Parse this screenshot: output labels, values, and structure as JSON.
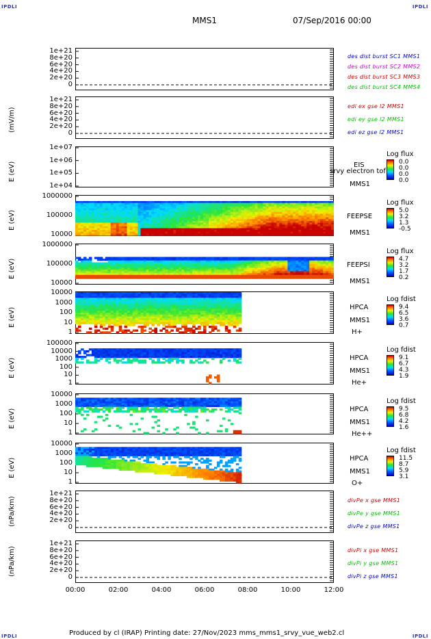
{
  "header": {
    "corner_left": "IPDLI",
    "corner_right": "IPDLI",
    "spacecraft": "MMS1",
    "date": "07/Sep/2016 00:00"
  },
  "footer": {
    "corner_left": "IPDLI",
    "corner_right": "IPDLI",
    "text": "Produced by cl (IRAP)   Printing date: 27/Nov/2023   mms_mms1_srvy_vue_web2.cl"
  },
  "colors": {
    "c1": "#0000cc",
    "c2": "#cc00cc",
    "c3": "#cc0000",
    "c4": "#00bb00",
    "red": "#cc0000",
    "green": "#00bb00",
    "blue": "#0000cc"
  },
  "chart_data": {
    "type": "multi-panel time series",
    "x_tick_labels": [
      "00:00",
      "02:00",
      "04:00",
      "06:00",
      "08:00",
      "10:00",
      "12:00"
    ],
    "xlim_hours": [
      0,
      12
    ],
    "panels": [
      {
        "id": "p1",
        "type": "line",
        "ytick_labels": [
          "1e+21",
          "8e+20",
          "6e+20",
          "4e+20",
          "2e+20",
          "0"
        ],
        "ylabel": "",
        "legend": [
          "des dist burst SC1 MMS1",
          "des dist burst SC2 MMS2",
          "des dist burst SC3 MMS3",
          "des dist burst SC4 MMS4"
        ]
      },
      {
        "id": "p2",
        "type": "line",
        "ytick_labels": [
          "1e+21",
          "8e+20",
          "6e+20",
          "4e+20",
          "2e+20",
          "0"
        ],
        "ylabel": "(mV/m)",
        "legend": [
          "edi ex gse l2 MMS1",
          "edi ey gse l2 MMS1",
          "edi ez gse l2 MMS1"
        ]
      },
      {
        "id": "p3",
        "type": "heatmap",
        "ytick_labels": [
          "1e+07",
          "1e+06",
          "1e+05",
          "1e+04"
        ],
        "ylabel": "E (eV)",
        "right_labels": [
          "EIS",
          "srvy electron tof",
          "MMS1"
        ],
        "colorbar_title": "Log flux",
        "colorbar_ticks": [
          "0.0",
          "0.0",
          "0.0",
          "0.0"
        ]
      },
      {
        "id": "p4",
        "type": "heatmap",
        "ytick_labels": [
          "1000000",
          "100000",
          "10000"
        ],
        "ylabel": "E (eV)",
        "right_labels": [
          "FEEPSE",
          "MMS1"
        ],
        "colorbar_title": "Log flux",
        "colorbar_ticks": [
          "5.0",
          "3.2",
          "1.3",
          "-0.5"
        ]
      },
      {
        "id": "p5",
        "type": "heatmap",
        "ytick_labels": [
          "1000000",
          "100000",
          "10000"
        ],
        "ylabel": "E (eV)",
        "right_labels": [
          "FEEPSI",
          "MMS1"
        ],
        "colorbar_title": "Log flux",
        "colorbar_ticks": [
          "4.7",
          "3.2",
          "1.7",
          "0.2"
        ]
      },
      {
        "id": "p6",
        "type": "heatmap",
        "ytick_labels": [
          "10000",
          "1000",
          "100",
          "10",
          "1"
        ],
        "ylabel": "E (eV)",
        "right_labels": [
          "HPCA",
          "MMS1",
          "H+"
        ],
        "colorbar_title": "Log fdist",
        "colorbar_ticks": [
          "9.4",
          "6.5",
          "3.6",
          "0.7"
        ]
      },
      {
        "id": "p7",
        "type": "heatmap",
        "ytick_labels": [
          "100000",
          "10000",
          "1000",
          "100",
          "10",
          "1"
        ],
        "ylabel": "E (eV)",
        "right_labels": [
          "HPCA",
          "MMS1",
          "He+"
        ],
        "colorbar_title": "Log fdist",
        "colorbar_ticks": [
          "9.1",
          "6.7",
          "4.3",
          "1.9"
        ]
      },
      {
        "id": "p8",
        "type": "heatmap",
        "ytick_labels": [
          "10000",
          "1000",
          "100",
          "10",
          "1"
        ],
        "ylabel": "E (eV)",
        "right_labels": [
          "HPCA",
          "MMS1",
          "He++"
        ],
        "colorbar_title": "Log fdist",
        "colorbar_ticks": [
          "9.5",
          "6.8",
          "4.2",
          "1.6"
        ]
      },
      {
        "id": "p9",
        "type": "heatmap",
        "ytick_labels": [
          "10000",
          "1000",
          "100",
          "10",
          "1"
        ],
        "ylabel": "E (eV)",
        "right_labels": [
          "HPCA",
          "MMS1",
          "O+"
        ],
        "colorbar_title": "Log fdist",
        "colorbar_ticks": [
          "11.5",
          "8.7",
          "5.9",
          "3.1"
        ]
      },
      {
        "id": "p10",
        "type": "line",
        "ytick_labels": [
          "1e+21",
          "8e+20",
          "6e+20",
          "4e+20",
          "2e+20",
          "0"
        ],
        "ylabel": "(nPa/km)",
        "legend": [
          "divPe x gse MMS1",
          "divPe y gse MMS1",
          "divPe z gse MMS1"
        ]
      },
      {
        "id": "p11",
        "type": "line",
        "ytick_labels": [
          "1e+21",
          "8e+20",
          "6e+20",
          "4e+20",
          "2e+20",
          "0"
        ],
        "ylabel": "(nPa/km)",
        "legend": [
          "divPi x gse MMS1",
          "divPi y gse MMS1",
          "divPi z gse MMS1"
        ]
      }
    ]
  }
}
